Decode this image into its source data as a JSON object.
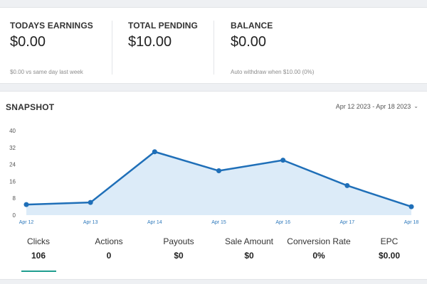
{
  "stats": [
    {
      "label": "TODAYS EARNINGS",
      "value": "$0.00",
      "sub": "$0.00 vs same day last week"
    },
    {
      "label": "TOTAL PENDING",
      "value": "$10.00",
      "sub": ""
    },
    {
      "label": "BALANCE",
      "value": "$0.00",
      "sub": "Auto withdraw when $10.00 (0%)"
    }
  ],
  "snapshot": {
    "title": "SNAPSHOT",
    "date_range": "Apr 12 2023 - Apr 18 2023",
    "chevron_icon": "chevron-down-icon"
  },
  "chart_data": {
    "type": "area",
    "title": "",
    "xlabel": "",
    "ylabel": "",
    "categories": [
      "Apr 12",
      "Apr 13",
      "Apr 14",
      "Apr 15",
      "Apr 16",
      "Apr 17",
      "Apr 18"
    ],
    "series": [
      {
        "values": [
          5,
          6,
          30,
          21,
          26,
          14,
          4
        ]
      }
    ],
    "yticks": [
      0,
      8,
      16,
      24,
      32,
      40
    ],
    "ylim": [
      0,
      40
    ],
    "grid": false,
    "legend": "none",
    "line_color": "#1f6fb8",
    "fill_color": "#dcebf8"
  },
  "metrics": [
    {
      "label": "Clicks",
      "value": "106",
      "active": true
    },
    {
      "label": "Actions",
      "value": "0"
    },
    {
      "label": "Payouts",
      "value": "$0"
    },
    {
      "label": "Sale Amount",
      "value": "$0"
    },
    {
      "label": "Conversion Rate",
      "value": "0%"
    },
    {
      "label": "EPC",
      "value": "$0.00"
    }
  ],
  "colors": {
    "accent": "#1f9e8f",
    "line": "#1f6fb8"
  }
}
